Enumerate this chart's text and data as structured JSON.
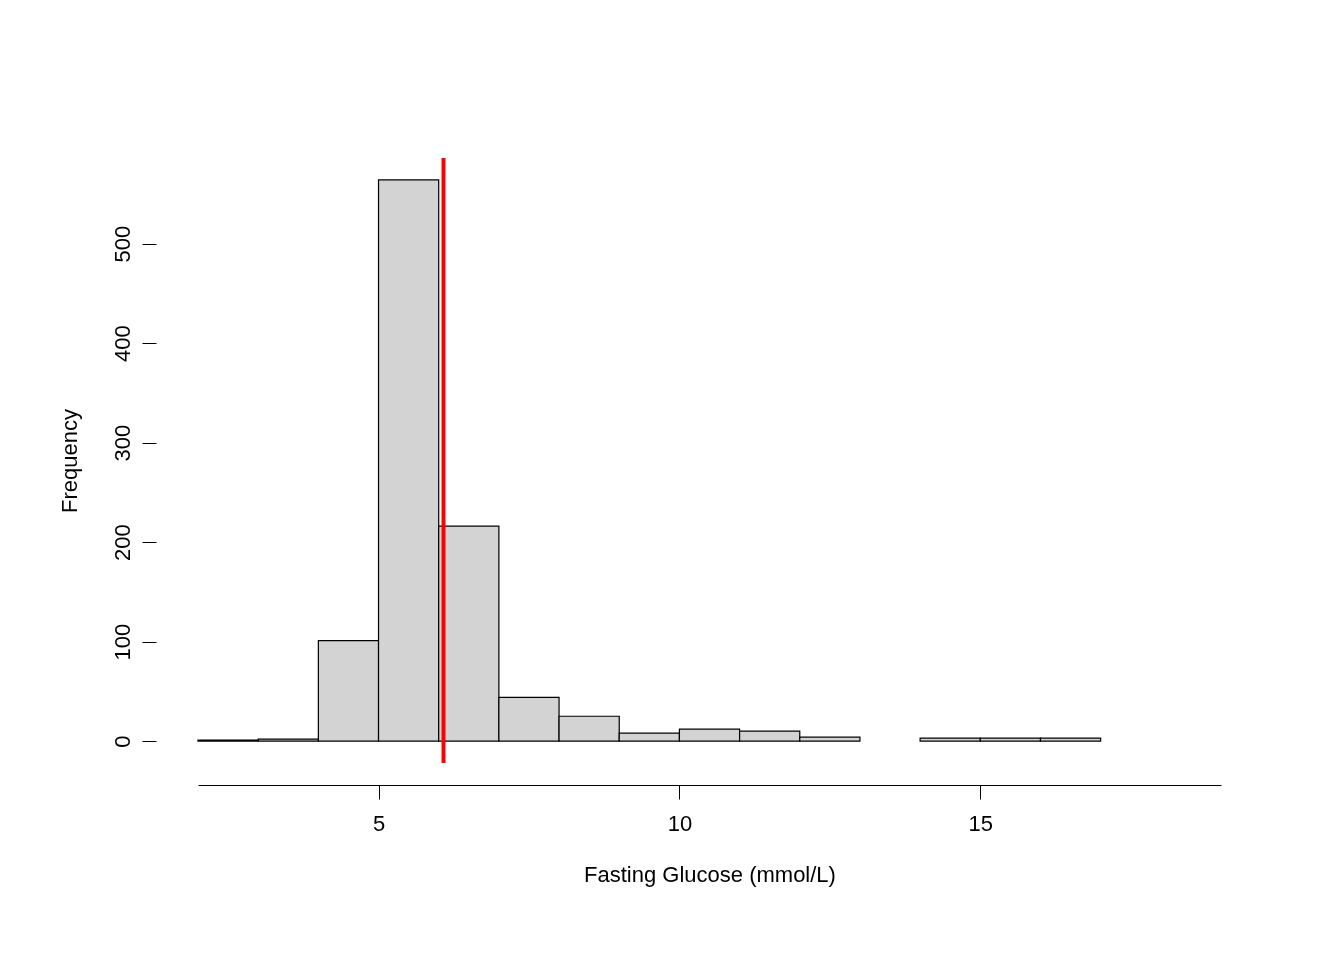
{
  "chart_data": {
    "type": "histogram",
    "xlabel": "Fasting Glucose (mmol/L)",
    "ylabel": "Frequency",
    "bins": [
      2,
      3,
      4,
      5,
      6,
      7,
      8,
      9,
      10,
      11,
      12,
      13,
      14,
      15,
      16,
      17,
      18,
      19
    ],
    "values": [
      1,
      2,
      101,
      564,
      216,
      44,
      25,
      8,
      12,
      10,
      4,
      0,
      3,
      3,
      3,
      0,
      0
    ],
    "color": "#d3d3d3",
    "xlim": [
      2,
      19
    ],
    "ylim": [
      -22,
      586
    ],
    "xticks": [
      5,
      10,
      15
    ],
    "yticks": [
      0,
      100,
      200,
      300,
      400,
      500
    ],
    "grid": false,
    "ref_lines": [
      {
        "axis": "x",
        "value": 6.08,
        "label": null,
        "color": "#ff0000"
      }
    ]
  }
}
